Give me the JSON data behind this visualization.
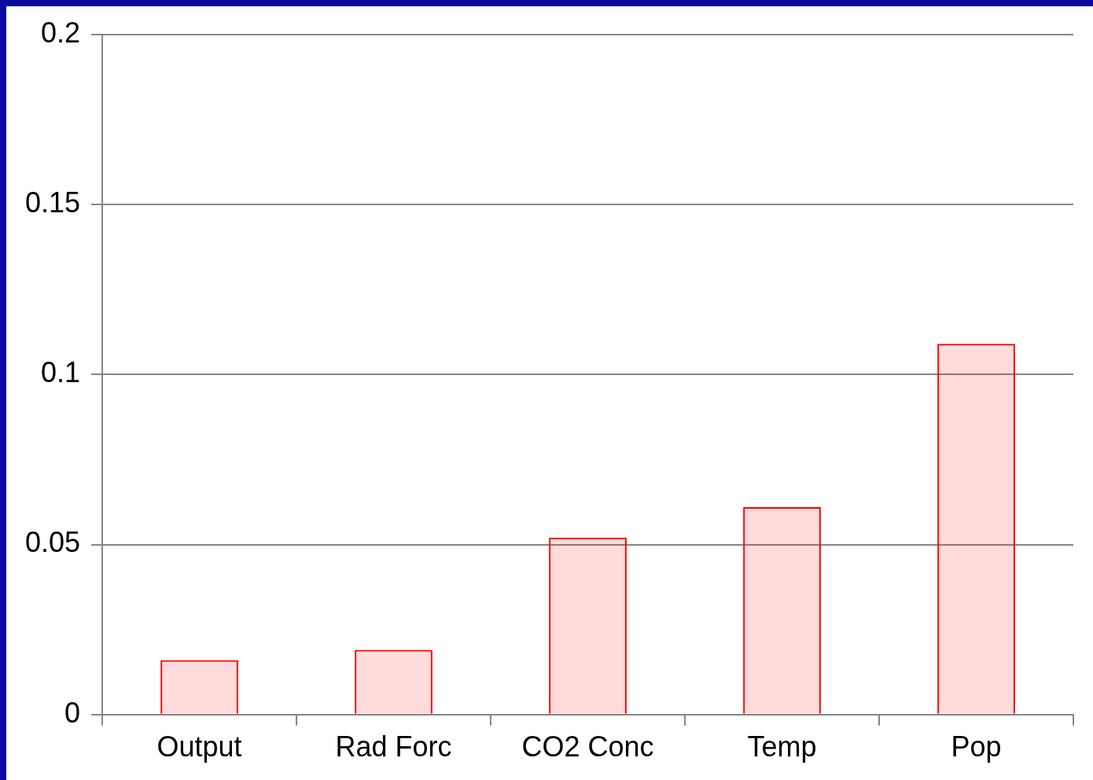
{
  "chart_data": {
    "type": "bar",
    "categories": [
      "Output",
      "Rad Forc",
      "CO2 Conc",
      "Temp",
      "Pop"
    ],
    "values": [
      0.016,
      0.019,
      0.052,
      0.061,
      0.109
    ],
    "color": "#ff0000",
    "ylim": [
      0,
      0.2
    ],
    "yticks": [
      0,
      0.05,
      0.1,
      0.15,
      0.2
    ],
    "grid": "y",
    "legend": false
  }
}
